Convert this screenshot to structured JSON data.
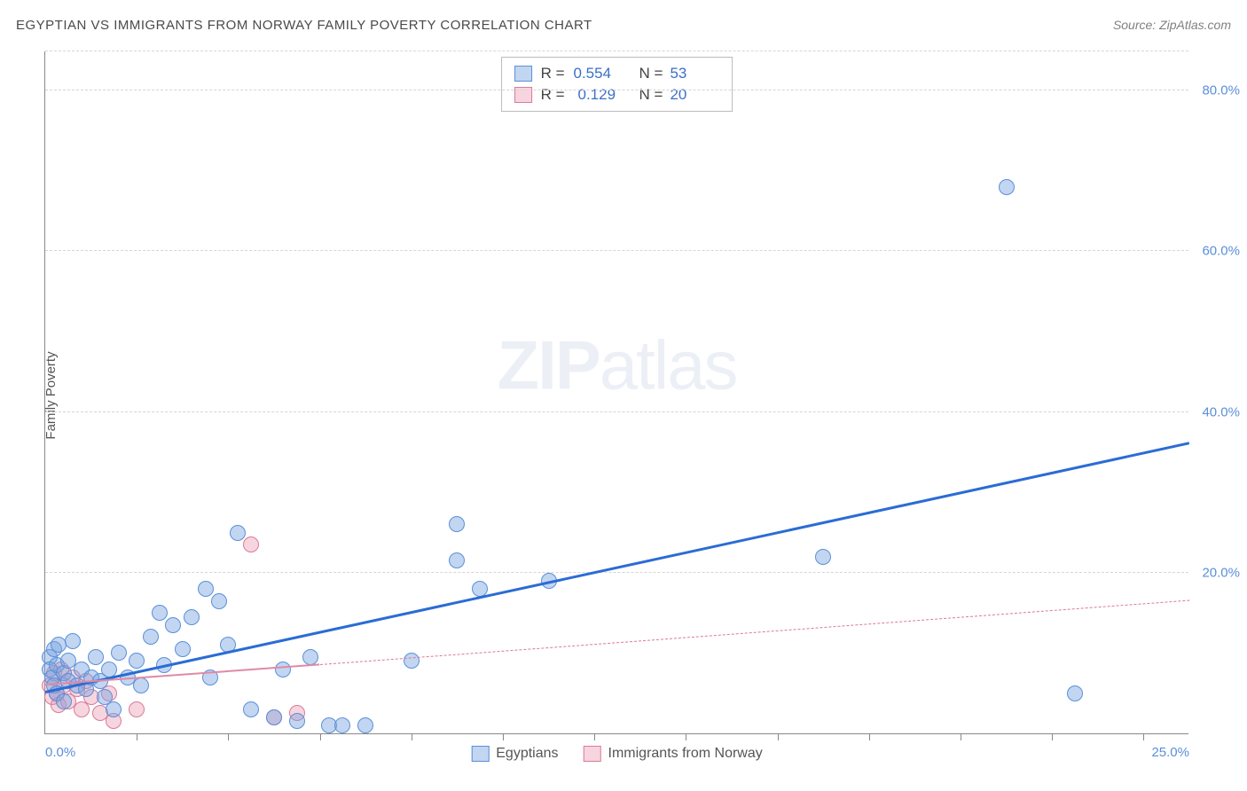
{
  "title": "EGYPTIAN VS IMMIGRANTS FROM NORWAY FAMILY POVERTY CORRELATION CHART",
  "source_label": "Source: ZipAtlas.com",
  "ylabel": "Family Poverty",
  "watermark_bold": "ZIP",
  "watermark_light": "atlas",
  "chart": {
    "type": "scatter",
    "xlim": [
      0,
      25
    ],
    "ylim": [
      0,
      85
    ],
    "x_tick_labels": {
      "0": "0.0%",
      "25": "25.0%"
    },
    "x_minor_ticks": [
      2,
      4,
      6,
      8,
      10,
      12,
      14,
      16,
      18,
      20,
      22,
      24
    ],
    "y_gridlines": [
      {
        "v": 20,
        "label": "20.0%"
      },
      {
        "v": 40,
        "label": "40.0%"
      },
      {
        "v": 60,
        "label": "60.0%"
      },
      {
        "v": 80,
        "label": "80.0%"
      }
    ],
    "background_color": "#ffffff",
    "axis_color": "#888888",
    "grid_color": "#d5d5d5",
    "tick_label_color": "#5b8fd9"
  },
  "series_a": {
    "name": "Egyptians",
    "marker_fill": "rgba(120,165,225,0.45)",
    "marker_stroke": "#5b8fd9",
    "marker_radius": 9,
    "trend_color": "#2b6cd4",
    "trend_width": 2.5,
    "trend_y_at_x0": 5.0,
    "trend_y_at_xmax": 36.0,
    "r_label": "R =",
    "r_value": "0.554",
    "n_label": "N =",
    "n_value": "53",
    "data": [
      [
        0.1,
        9.5
      ],
      [
        0.1,
        8.0
      ],
      [
        0.15,
        7.0
      ],
      [
        0.2,
        10.5
      ],
      [
        0.2,
        6.0
      ],
      [
        0.25,
        8.5
      ],
      [
        0.25,
        5.0
      ],
      [
        0.3,
        11.0
      ],
      [
        0.4,
        7.5
      ],
      [
        0.4,
        4.0
      ],
      [
        0.5,
        6.5
      ],
      [
        0.5,
        9.0
      ],
      [
        0.6,
        11.5
      ],
      [
        0.7,
        6.0
      ],
      [
        0.8,
        8.0
      ],
      [
        0.9,
        5.5
      ],
      [
        1.0,
        7.0
      ],
      [
        1.1,
        9.5
      ],
      [
        1.2,
        6.5
      ],
      [
        1.3,
        4.5
      ],
      [
        1.4,
        8.0
      ],
      [
        1.5,
        3.0
      ],
      [
        1.6,
        10.0
      ],
      [
        1.8,
        7.0
      ],
      [
        2.0,
        9.0
      ],
      [
        2.1,
        6.0
      ],
      [
        2.3,
        12.0
      ],
      [
        2.5,
        15.0
      ],
      [
        2.6,
        8.5
      ],
      [
        2.8,
        13.5
      ],
      [
        3.0,
        10.5
      ],
      [
        3.2,
        14.5
      ],
      [
        3.5,
        18.0
      ],
      [
        3.6,
        7.0
      ],
      [
        3.8,
        16.5
      ],
      [
        4.0,
        11.0
      ],
      [
        4.2,
        25.0
      ],
      [
        4.5,
        3.0
      ],
      [
        5.0,
        2.0
      ],
      [
        5.2,
        8.0
      ],
      [
        5.5,
        1.5
      ],
      [
        5.8,
        9.5
      ],
      [
        6.2,
        1.0
      ],
      [
        6.5,
        1.0
      ],
      [
        7.0,
        1.0
      ],
      [
        8.0,
        9.0
      ],
      [
        9.0,
        26.0
      ],
      [
        9.0,
        21.5
      ],
      [
        9.5,
        18.0
      ],
      [
        11.0,
        19.0
      ],
      [
        17.0,
        22.0
      ],
      [
        21.0,
        68.0
      ],
      [
        22.5,
        5.0
      ]
    ]
  },
  "series_b": {
    "name": "Immigrants from Norway",
    "marker_fill": "rgba(235,150,175,0.40)",
    "marker_stroke": "#d97a9a",
    "marker_radius": 9,
    "trend_solid_color": "#e08aa5",
    "trend_dash_color": "#d97a9a",
    "trend_width_solid": 2,
    "trend_y_at_x0": 6.0,
    "trend_y_at_x6": 8.5,
    "trend_y_at_xmax": 16.5,
    "r_label": "R =",
    "r_value": "0.129",
    "n_label": "N =",
    "n_value": "20",
    "data": [
      [
        0.1,
        6.0
      ],
      [
        0.15,
        4.5
      ],
      [
        0.2,
        7.5
      ],
      [
        0.25,
        5.0
      ],
      [
        0.3,
        3.5
      ],
      [
        0.35,
        8.0
      ],
      [
        0.4,
        6.0
      ],
      [
        0.5,
        4.0
      ],
      [
        0.6,
        7.0
      ],
      [
        0.7,
        5.5
      ],
      [
        0.8,
        3.0
      ],
      [
        0.9,
        6.5
      ],
      [
        1.0,
        4.5
      ],
      [
        1.2,
        2.5
      ],
      [
        1.4,
        5.0
      ],
      [
        1.5,
        1.5
      ],
      [
        2.0,
        3.0
      ],
      [
        4.5,
        23.5
      ],
      [
        5.0,
        2.0
      ],
      [
        5.5,
        2.5
      ]
    ]
  },
  "bottom_legend": {
    "a": "Egyptians",
    "b": "Immigrants from Norway"
  }
}
